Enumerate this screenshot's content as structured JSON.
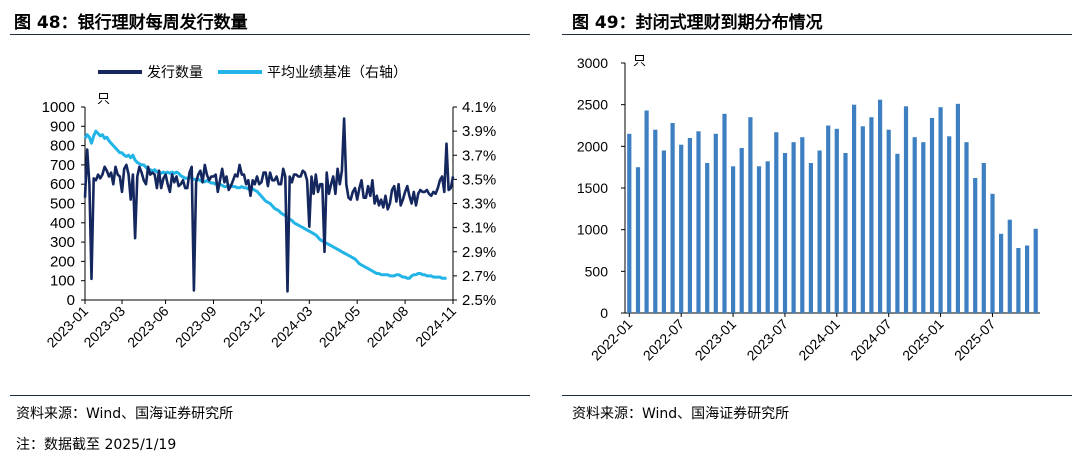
{
  "figures": {
    "left_title": "图 48：银行理财每周发行数量",
    "right_title": "图 49：封闭式理财到期分布情况",
    "left_source": "资料来源：Wind、国海证券研究所",
    "right_source": "资料来源：Wind、国海证券研究所",
    "left_note": "注：数据截至 2025/1/19"
  },
  "colors": {
    "count": "#14275e",
    "yield": "#22b4e6",
    "bar": "#3d7fc0"
  },
  "chart_data": [
    {
      "type": "line",
      "title": "图 48：银行理财每周发行数量",
      "unit_left": "只",
      "x_ticks": [
        "2023-01",
        "2023-03",
        "2023-06",
        "2023-09",
        "2023-12",
        "2024-03",
        "2024-05",
        "2024-08",
        "2024-11"
      ],
      "y_left_ticks": [
        "0",
        "100",
        "200",
        "300",
        "400",
        "500",
        "600",
        "700",
        "800",
        "900",
        "1000"
      ],
      "y_right_ticks": [
        "2.5%",
        "2.7%",
        "2.9%",
        "3.1%",
        "3.3%",
        "3.5%",
        "3.7%",
        "3.9%",
        "4.1%"
      ],
      "ylim_left": [
        0,
        1000
      ],
      "ylim_right": [
        2.5,
        4.1
      ],
      "legend_position": "top",
      "series": [
        {
          "name": "发行数量",
          "axis": "left",
          "values": [
            530,
            780,
            600,
            110,
            630,
            620,
            650,
            630,
            650,
            690,
            670,
            640,
            660,
            600,
            690,
            650,
            640,
            560,
            680,
            700,
            650,
            520,
            650,
            320,
            640,
            690,
            660,
            620,
            600,
            690,
            650,
            660,
            650,
            580,
            670,
            580,
            630,
            650,
            600,
            560,
            650,
            610,
            640,
            590,
            600,
            620,
            580,
            580,
            660,
            690,
            50,
            610,
            650,
            670,
            610,
            700,
            650,
            620,
            640,
            640,
            650,
            560,
            620,
            680,
            610,
            640,
            570,
            590,
            620,
            650,
            640,
            700,
            650,
            650,
            600,
            620,
            540,
            620,
            600,
            640,
            600,
            610,
            660,
            660,
            590,
            660,
            620,
            620,
            640,
            600,
            600,
            680,
            640,
            45,
            640,
            610,
            650,
            650,
            640,
            640,
            670,
            660,
            620,
            380,
            640,
            550,
            650,
            560,
            600,
            600,
            250,
            660,
            550,
            600,
            640,
            550,
            680,
            600,
            670,
            940,
            600,
            530,
            520,
            560,
            580,
            520,
            580,
            620,
            530,
            530,
            590,
            540,
            620,
            500,
            540,
            490,
            520,
            480,
            540,
            470,
            500,
            570,
            590,
            510,
            600,
            490,
            520,
            560,
            590,
            540,
            500,
            560,
            490,
            550,
            570,
            560,
            560,
            570,
            550,
            540,
            560,
            550,
            580,
            620,
            640,
            560,
            810,
            570,
            580,
            640
          ]
        },
        {
          "name": "平均业绩基准（右轴）",
          "axis": "right",
          "values": [
            3.84,
            3.87,
            3.85,
            3.8,
            3.86,
            3.9,
            3.88,
            3.86,
            3.87,
            3.84,
            3.85,
            3.82,
            3.8,
            3.78,
            3.76,
            3.74,
            3.72,
            3.72,
            3.7,
            3.69,
            3.7,
            3.68,
            3.7,
            3.66,
            3.64,
            3.63,
            3.62,
            3.62,
            3.6,
            3.58,
            3.58,
            3.57,
            3.58,
            3.56,
            3.56,
            3.55,
            3.56,
            3.55,
            3.56,
            3.55,
            3.56,
            3.55,
            3.56,
            3.55,
            3.53,
            3.52,
            3.51,
            3.51,
            3.52,
            3.51,
            3.5,
            3.5,
            3.5,
            3.49,
            3.48,
            3.48,
            3.49,
            3.48,
            3.47,
            3.47,
            3.46,
            3.46,
            3.46,
            3.45,
            3.44,
            3.44,
            3.45,
            3.45,
            3.44,
            3.44,
            3.43,
            3.43,
            3.44,
            3.43,
            3.43,
            3.42,
            3.43,
            3.42,
            3.41,
            3.4,
            3.38,
            3.36,
            3.34,
            3.32,
            3.31,
            3.3,
            3.28,
            3.26,
            3.25,
            3.24,
            3.22,
            3.21,
            3.2,
            3.18,
            3.17,
            3.16,
            3.14,
            3.13,
            3.12,
            3.11,
            3.1,
            3.09,
            3.08,
            3.07,
            3.06,
            3.05,
            3.04,
            3.02,
            3.0,
            2.99,
            2.98,
            2.97,
            2.96,
            2.95,
            2.94,
            2.93,
            2.92,
            2.91,
            2.9,
            2.89,
            2.88,
            2.87,
            2.86,
            2.85,
            2.84,
            2.82,
            2.8,
            2.79,
            2.78,
            2.77,
            2.76,
            2.75,
            2.74,
            2.73,
            2.72,
            2.72,
            2.71,
            2.71,
            2.71,
            2.71,
            2.7,
            2.7,
            2.7,
            2.71,
            2.71,
            2.7,
            2.69,
            2.69,
            2.68,
            2.68,
            2.7,
            2.71,
            2.71,
            2.72,
            2.72,
            2.71,
            2.71,
            2.7,
            2.7,
            2.7,
            2.69,
            2.69,
            2.69,
            2.69,
            2.68,
            2.68,
            2.68
          ]
        }
      ]
    },
    {
      "type": "bar",
      "title": "图 49：封闭式理财到期分布情况",
      "unit": "只",
      "x_ticks": [
        "2022-01",
        "2022-07",
        "2023-01",
        "2023-07",
        "2024-01",
        "2024-07",
        "2025-01",
        "2025-07"
      ],
      "y_ticks": [
        "0",
        "500",
        "1000",
        "1500",
        "2000",
        "2500",
        "3000"
      ],
      "ylim": [
        0,
        3000
      ],
      "categories": [
        "2022-01",
        "2022-02",
        "2022-03",
        "2022-04",
        "2022-05",
        "2022-06",
        "2022-07",
        "2022-08",
        "2022-09",
        "2022-10",
        "2022-11",
        "2022-12",
        "2023-01",
        "2023-02",
        "2023-03",
        "2023-04",
        "2023-05",
        "2023-06",
        "2023-07",
        "2023-08",
        "2023-09",
        "2023-10",
        "2023-11",
        "2023-12",
        "2024-01",
        "2024-02",
        "2024-03",
        "2024-04",
        "2024-05",
        "2024-06",
        "2024-07",
        "2024-08",
        "2024-09",
        "2024-10",
        "2024-11",
        "2024-12",
        "2025-01",
        "2025-02",
        "2025-03",
        "2025-04",
        "2025-05",
        "2025-06",
        "2025-07",
        "2025-08",
        "2025-09",
        "2025-10",
        "2025-11",
        "2025-12"
      ],
      "values": [
        2150,
        1750,
        2430,
        2200,
        1950,
        2280,
        2020,
        2100,
        2180,
        1800,
        2150,
        2390,
        1760,
        1980,
        2350,
        1760,
        1820,
        2170,
        1920,
        2050,
        2110,
        1800,
        1950,
        2250,
        2210,
        1920,
        2500,
        2240,
        2350,
        2560,
        2200,
        1910,
        2480,
        2110,
        2050,
        2340,
        2470,
        2120,
        2510,
        2050,
        1620,
        1800,
        1430,
        950,
        1120,
        780,
        810,
        1010
      ]
    }
  ]
}
